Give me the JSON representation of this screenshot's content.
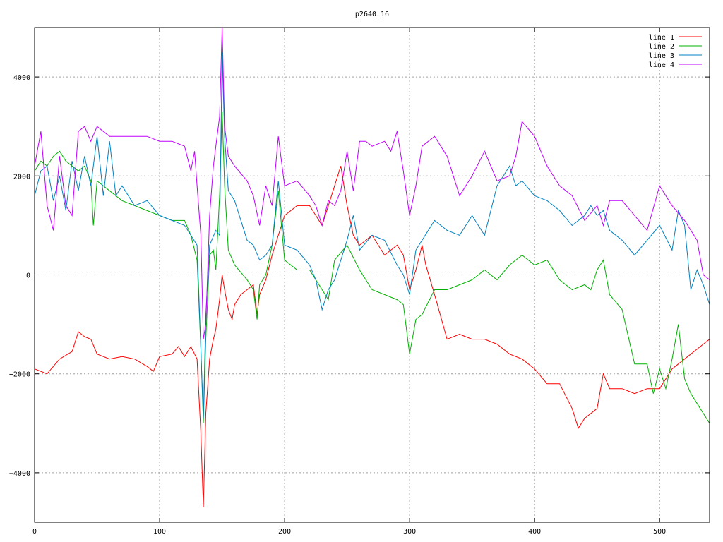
{
  "chart_data": {
    "type": "line",
    "title": "p2640_16",
    "xlabel": "",
    "ylabel": "",
    "xlim": [
      0,
      540
    ],
    "ylim": [
      -5000,
      5000
    ],
    "x_ticks": [
      0,
      100,
      200,
      300,
      400,
      500
    ],
    "y_ticks": [
      -4000,
      -2000,
      0,
      2000,
      4000
    ],
    "grid": true,
    "legend_position": "top-right",
    "series": [
      {
        "name": "line 1",
        "color": "#ff0000",
        "x": [
          0,
          10,
          20,
          30,
          35,
          40,
          45,
          50,
          60,
          70,
          80,
          90,
          95,
          100,
          110,
          115,
          120,
          125,
          130,
          133,
          135,
          137,
          140,
          143,
          145,
          148,
          150,
          152,
          155,
          158,
          160,
          165,
          170,
          175,
          178,
          180,
          185,
          190,
          195,
          200,
          210,
          220,
          230,
          240,
          245,
          250,
          255,
          260,
          270,
          280,
          290,
          295,
          300,
          305,
          310,
          313,
          320,
          330,
          340,
          350,
          360,
          370,
          380,
          390,
          400,
          410,
          420,
          430,
          435,
          440,
          450,
          455,
          460,
          470,
          480,
          490,
          500,
          510,
          520,
          530,
          540
        ],
        "y": [
          -1900,
          -2000,
          -1700,
          -1550,
          -1150,
          -1250,
          -1300,
          -1600,
          -1700,
          -1650,
          -1700,
          -1850,
          -1950,
          -1650,
          -1600,
          -1450,
          -1650,
          -1450,
          -1700,
          -3200,
          -4700,
          -2800,
          -1700,
          -1300,
          -1100,
          -500,
          0,
          -300,
          -700,
          -900,
          -600,
          -400,
          -300,
          -200,
          -800,
          -400,
          -100,
          400,
          800,
          1200,
          1400,
          1400,
          1000,
          1800,
          2200,
          1400,
          800,
          600,
          800,
          400,
          600,
          400,
          -300,
          100,
          600,
          200,
          -400,
          -1300,
          -1200,
          -1300,
          -1300,
          -1400,
          -1600,
          -1700,
          -1900,
          -2200,
          -2200,
          -2700,
          -3100,
          -2900,
          -2700,
          -2000,
          -2300,
          -2300,
          -2400,
          -2300,
          -2300,
          -1900,
          -1700,
          -1500,
          -1300
        ]
      },
      {
        "name": "line 2",
        "color": "#00b000",
        "x": [
          0,
          5,
          10,
          15,
          20,
          25,
          30,
          35,
          40,
          45,
          47,
          50,
          60,
          70,
          80,
          90,
          100,
          110,
          120,
          125,
          130,
          133,
          135,
          137,
          140,
          143,
          145,
          148,
          150,
          152,
          155,
          160,
          170,
          175,
          178,
          180,
          185,
          190,
          195,
          200,
          210,
          220,
          230,
          235,
          240,
          250,
          260,
          270,
          280,
          290,
          295,
          300,
          305,
          310,
          320,
          330,
          340,
          350,
          360,
          370,
          380,
          390,
          400,
          410,
          420,
          430,
          440,
          445,
          450,
          455,
          460,
          470,
          480,
          490,
          495,
          500,
          505,
          510,
          515,
          520,
          525,
          530,
          540
        ],
        "y": [
          2100,
          2300,
          2200,
          2400,
          2500,
          2300,
          2200,
          2100,
          2200,
          1900,
          1000,
          1900,
          1700,
          1500,
          1400,
          1300,
          1200,
          1100,
          1100,
          800,
          300,
          -1500,
          -3000,
          -1300,
          400,
          500,
          100,
          1600,
          3300,
          1800,
          500,
          200,
          -100,
          -300,
          -900,
          -200,
          0,
          600,
          1700,
          300,
          100,
          100,
          -300,
          -500,
          300,
          600,
          100,
          -300,
          -400,
          -500,
          -600,
          -1600,
          -900,
          -800,
          -300,
          -300,
          -200,
          -100,
          100,
          -100,
          200,
          400,
          200,
          300,
          -100,
          -300,
          -200,
          -300,
          100,
          300,
          -400,
          -700,
          -1800,
          -1800,
          -2400,
          -1900,
          -2300,
          -1700,
          -1000,
          -2100,
          -2400,
          -2600,
          -3000
        ]
      },
      {
        "name": "line 3",
        "color": "#0080c0",
        "x": [
          0,
          5,
          10,
          15,
          20,
          25,
          30,
          35,
          40,
          45,
          50,
          55,
          60,
          65,
          70,
          80,
          90,
          100,
          110,
          120,
          125,
          130,
          133,
          135,
          137,
          140,
          145,
          148,
          150,
          152,
          155,
          160,
          170,
          175,
          180,
          185,
          190,
          195,
          200,
          210,
          220,
          225,
          230,
          235,
          240,
          250,
          255,
          260,
          270,
          280,
          290,
          295,
          300,
          305,
          310,
          320,
          330,
          340,
          350,
          360,
          370,
          380,
          385,
          390,
          400,
          410,
          420,
          430,
          440,
          445,
          450,
          455,
          460,
          470,
          480,
          490,
          500,
          510,
          515,
          520,
          525,
          530,
          535,
          540
        ],
        "y": [
          1600,
          2100,
          2200,
          1500,
          2000,
          1300,
          2300,
          1700,
          2400,
          1800,
          2800,
          1600,
          2700,
          1600,
          1800,
          1400,
          1500,
          1200,
          1100,
          1000,
          800,
          600,
          -1500,
          -2900,
          -800,
          600,
          900,
          800,
          4500,
          2800,
          1700,
          1500,
          700,
          600,
          300,
          400,
          600,
          1900,
          600,
          500,
          200,
          -100,
          -700,
          -300,
          -100,
          700,
          1200,
          500,
          800,
          700,
          200,
          0,
          -400,
          500,
          700,
          1100,
          900,
          800,
          1200,
          800,
          1800,
          2200,
          1800,
          1900,
          1600,
          1500,
          1300,
          1000,
          1200,
          1400,
          1200,
          1300,
          900,
          700,
          400,
          700,
          1000,
          500,
          1300,
          1000,
          -300,
          100,
          -200,
          -600
        ]
      },
      {
        "name": "line 4",
        "color": "#c000ff",
        "x": [
          0,
          5,
          10,
          15,
          20,
          25,
          30,
          35,
          40,
          45,
          50,
          60,
          70,
          80,
          90,
          100,
          110,
          120,
          125,
          128,
          130,
          133,
          135,
          137,
          140,
          143,
          145,
          148,
          150,
          152,
          155,
          160,
          170,
          175,
          180,
          185,
          190,
          195,
          200,
          210,
          220,
          225,
          230,
          235,
          240,
          245,
          250,
          255,
          260,
          265,
          270,
          280,
          285,
          290,
          295,
          300,
          305,
          310,
          320,
          330,
          340,
          350,
          360,
          370,
          380,
          385,
          390,
          400,
          410,
          420,
          430,
          440,
          450,
          455,
          460,
          470,
          480,
          490,
          500,
          510,
          520,
          530,
          535,
          540
        ],
        "y": [
          2200,
          2900,
          1400,
          900,
          2400,
          1400,
          1200,
          2900,
          3000,
          2700,
          3000,
          2800,
          2800,
          2800,
          2800,
          2700,
          2700,
          2600,
          2100,
          2500,
          1800,
          800,
          -1300,
          -1000,
          1200,
          2200,
          2600,
          3200,
          5000,
          3000,
          2400,
          2200,
          1900,
          1600,
          1000,
          1800,
          1400,
          2800,
          1800,
          1900,
          1600,
          1400,
          1000,
          1500,
          1400,
          1700,
          2500,
          1700,
          2700,
          2700,
          2600,
          2700,
          2500,
          2900,
          2100,
          1200,
          1800,
          2600,
          2800,
          2400,
          1600,
          2000,
          2500,
          1900,
          2000,
          2400,
          3100,
          2800,
          2200,
          1800,
          1600,
          1100,
          1400,
          1000,
          1500,
          1500,
          1200,
          900,
          1800,
          1400,
          1100,
          700,
          0,
          -100
        ]
      }
    ]
  }
}
